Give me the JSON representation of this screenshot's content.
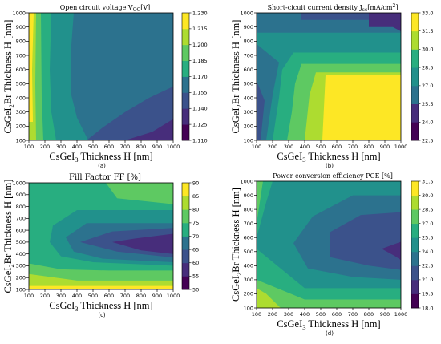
{
  "chart_data": [
    {
      "type": "contour",
      "panel": "(a)",
      "title": "Open circuit voltage V_OC[V]",
      "title_main": "Open circuit voltage V",
      "title_sub": "OC",
      "title_tail": "[V]",
      "xlabel": "CsGeI3 Thickness H [nm]",
      "ylabel": "CsGeI2Br Thickness H [nm]",
      "xlim": [
        100,
        1000
      ],
      "ylim": [
        100,
        1000
      ],
      "x_ticks": [
        100,
        200,
        300,
        400,
        500,
        600,
        700,
        800,
        900,
        1000
      ],
      "y_ticks": [
        100,
        200,
        300,
        400,
        500,
        600,
        700,
        800,
        900,
        1000
      ],
      "colorbar_ticks": [
        "1.110",
        "1.125",
        "1.140",
        "1.155",
        "1.170",
        "1.185",
        "1.200",
        "1.215",
        "1.230"
      ],
      "grid": false
    },
    {
      "type": "contour",
      "panel": "(b)",
      "title": "Short-cicuit current density J_sc[mA/cm^2]",
      "title_main": "Short-cicuit current density J",
      "title_sub": "sc",
      "title_tail": "[mA/cm",
      "title_sup": "2",
      "title_end": "]",
      "xlabel": "CsGeI3 Thickness H [nm]",
      "ylabel": "CsGeI2Br Thickness H [nm]",
      "xlim": [
        100,
        1000
      ],
      "ylim": [
        100,
        1000
      ],
      "x_ticks": [
        100,
        200,
        300,
        400,
        500,
        600,
        700,
        800,
        900,
        1000
      ],
      "y_ticks": [
        100,
        200,
        300,
        400,
        500,
        600,
        700,
        800,
        900,
        1000
      ],
      "colorbar_ticks": [
        "22.5",
        "24.0",
        "25.5",
        "27.0",
        "28.5",
        "30.0",
        "31.5",
        "33.0"
      ],
      "grid": false
    },
    {
      "type": "contour",
      "panel": "(c)",
      "title": "Fill Factor FF [%]",
      "title_main": "Fill Factor FF [%]",
      "xlabel": "CsGeI3 Thickness H [nm]",
      "ylabel": "CsGeI2Br Thickness H [nm]",
      "xlim": [
        100,
        1000
      ],
      "ylim": [
        100,
        1000
      ],
      "x_ticks": [
        100,
        200,
        300,
        400,
        500,
        600,
        700,
        800,
        900,
        1000
      ],
      "y_ticks": [
        100,
        200,
        300,
        400,
        500,
        600,
        700,
        800,
        900,
        1000
      ],
      "colorbar_ticks": [
        "50",
        "55",
        "60",
        "65",
        "70",
        "75",
        "80",
        "85",
        "90"
      ],
      "grid": false
    },
    {
      "type": "contour",
      "panel": "(d)",
      "title": "Power conversion efficiency PCE [%]",
      "title_main": "Power conversion efficiency PCE [%]",
      "xlabel": "CsGeI3 Thickness H [nm]",
      "ylabel": "CsGeI2Br Thickness H [nm]",
      "xlim": [
        100,
        1000
      ],
      "ylim": [
        100,
        1000
      ],
      "x_ticks": [
        100,
        200,
        300,
        400,
        500,
        600,
        700,
        800,
        900,
        1000
      ],
      "y_ticks": [
        100,
        200,
        300,
        400,
        500,
        600,
        700,
        800,
        900,
        1000
      ],
      "colorbar_ticks": [
        "18.0",
        "19.5",
        "21.0",
        "22.5",
        "24.0",
        "25.5",
        "27.0",
        "28.5",
        "30.0",
        "31.5"
      ],
      "grid": false
    }
  ],
  "colors": {
    "level1": "#440154",
    "level2": "#472d7b",
    "level3": "#3b528b",
    "level4": "#2c728e",
    "level5": "#21918c",
    "level6": "#28ae80",
    "level7": "#5ec962",
    "level8": "#addc30",
    "level9": "#fde725"
  }
}
